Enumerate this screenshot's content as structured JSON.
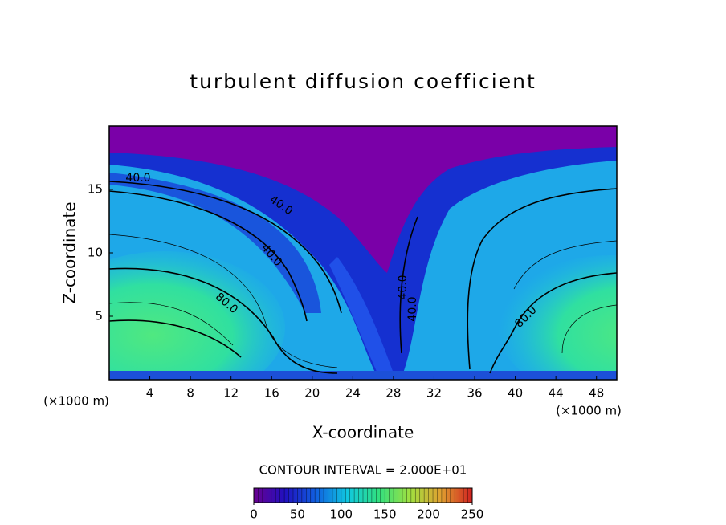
{
  "chart_data": {
    "type": "contour",
    "title": "turbulent diffusion coefficient",
    "x_label": "X-coordinate",
    "y_label": "Z-coordinate",
    "x_unit_left": "(×1000 m)",
    "x_unit_right": "(×1000 m)",
    "xlim": [
      0,
      50
    ],
    "xticks": [
      4,
      8,
      12,
      16,
      20,
      24,
      28,
      32,
      36,
      40,
      44,
      48
    ],
    "ylim": [
      0,
      20
    ],
    "yticks": [
      5,
      10,
      15
    ],
    "contour_interval_text": "CONTOUR INTERVAL = 2.000E+01",
    "contour_labels": [
      "40.0",
      "40.0",
      "40.0",
      "40.0",
      "40.0",
      "80.0",
      "80.0"
    ],
    "colorbar": {
      "lim": [
        0,
        250
      ],
      "ticks": [
        0,
        50,
        100,
        150,
        200,
        250
      ],
      "colors": [
        "#6a0090",
        "#2010c0",
        "#1060e0",
        "#10c8e0",
        "#30e080",
        "#a0e040",
        "#e0a030",
        "#d02020"
      ]
    }
  }
}
